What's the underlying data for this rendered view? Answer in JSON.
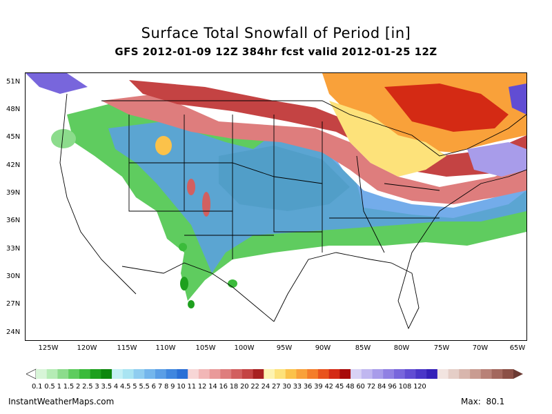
{
  "title": "Surface Total Snowfall of Period [in]",
  "subtitle": "GFS 2012-01-09 12Z 384hr fcst valid 2012-01-25 12Z",
  "lat_labels": [
    "51N",
    "48N",
    "45N",
    "42N",
    "39N",
    "36N",
    "33N",
    "30N",
    "27N",
    "24N"
  ],
  "lon_labels": [
    "125W",
    "120W",
    "115W",
    "110W",
    "105W",
    "100W",
    "95W",
    "90W",
    "85W",
    "80W",
    "75W",
    "70W",
    "65W"
  ],
  "colorbar_labels_text": "0.1 0.5  1  1.5  2  2.5  3  3.5  4  4.5  5  5.5  6   7   8   9  10 11 12 14 16 18 20 22 24 27 30 33 36 39 42 45 48 60 72 84 96 108 120",
  "colorbar_colors": [
    "#d8f5d8",
    "#b5ecb5",
    "#8cdc8c",
    "#5fcc5f",
    "#3bbb3b",
    "#1ea01e",
    "#0d870d",
    "#c4f0f5",
    "#a9e4f2",
    "#8fcdf0",
    "#74b6ec",
    "#5a9ee6",
    "#3f86df",
    "#2a6fd6",
    "#f7d6d6",
    "#f2b7b7",
    "#e99a9a",
    "#de7d7d",
    "#d26060",
    "#c44343",
    "#a82020",
    "#fdf3b0",
    "#fde27a",
    "#fbc24a",
    "#f9a13a",
    "#f47d2a",
    "#e9531d",
    "#d42a14",
    "#a80a0a",
    "#d8d2f5",
    "#c0b7f0",
    "#a89cea",
    "#9080e3",
    "#7866dc",
    "#614dd3",
    "#4a36c8",
    "#3520b8",
    "#f2e4e0",
    "#e5cec7",
    "#d8b6ad",
    "#c99c91",
    "#b88177",
    "#a3675d",
    "#8b4f45"
  ],
  "footer_site": "InstantWeatherMaps.com",
  "footer_max_label": "Max:",
  "footer_max_value": "80.1"
}
